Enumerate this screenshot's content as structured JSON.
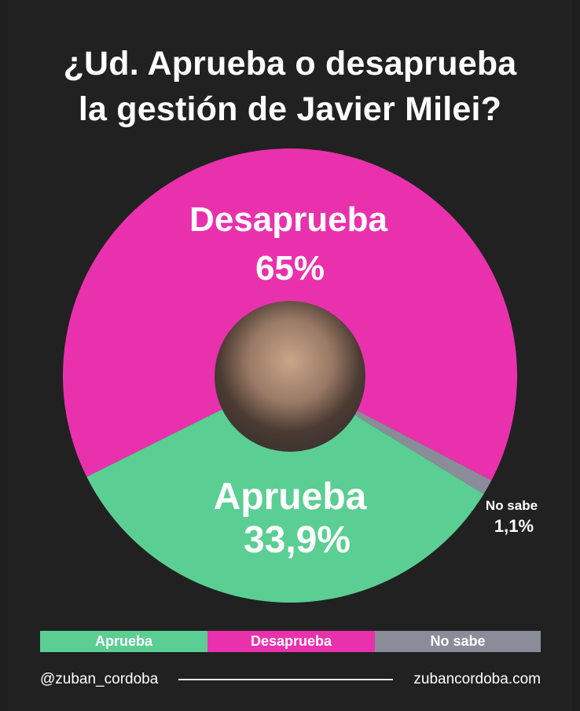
{
  "title_lines": [
    "¿Ud. Aprueba o desaprueba",
    "la gestión de Javier Milei?"
  ],
  "colors": {
    "background": "#212121",
    "aprueba": "#5bce93",
    "desaprueba": "#ea31ad",
    "no_sabe": "#8a8c99"
  },
  "chart_data": {
    "type": "pie",
    "title": "¿Ud. Aprueba o desaprueba la gestión de Javier Milei?",
    "slices": [
      {
        "name": "Desaprueba",
        "value": 65,
        "label": "65%",
        "color": "#ea31ad"
      },
      {
        "name": "Aprueba",
        "value": 33.9,
        "label": "33,9%",
        "color": "#5bce93"
      },
      {
        "name": "No sabe",
        "value": 1.1,
        "label": "1,1%",
        "color": "#8a8c99"
      }
    ],
    "legend_placement": "bottom"
  },
  "legend": [
    {
      "label": "Aprueba",
      "color": "#5bce93"
    },
    {
      "label": "Desaprueba",
      "color": "#ea31ad"
    },
    {
      "label": "No sabe",
      "color": "#8a8c99"
    }
  ],
  "footer": {
    "handle": "@zuban_cordoba",
    "website": "zubancordoba.com"
  }
}
